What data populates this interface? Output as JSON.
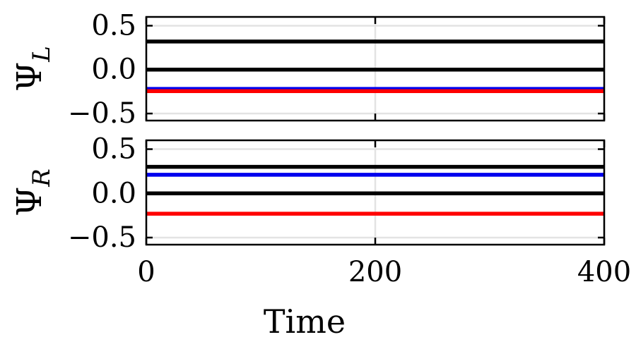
{
  "chart_data": {
    "type": "line",
    "xlabel": "Time",
    "xlim": [
      0,
      400
    ],
    "x_ticks": [
      0,
      200,
      400
    ],
    "x_tick_labels": [
      "0",
      "200",
      "400"
    ],
    "grid": true,
    "panels": [
      {
        "ylabel_symbol": "Ψ",
        "ylabel_sub": "L",
        "ylim": [
          -0.58,
          0.6
        ],
        "y_ticks": [
          0.5,
          0.0,
          -0.5
        ],
        "y_tick_labels": [
          "0.5",
          "0.0",
          "−0.5"
        ],
        "series": [
          {
            "name": "black-upper",
            "color": "#000000",
            "x": [
              0,
              400
            ],
            "y": [
              0.32,
              0.32
            ]
          },
          {
            "name": "black-zero",
            "color": "#000000",
            "x": [
              0,
              400
            ],
            "y": [
              0.0,
              0.0
            ]
          },
          {
            "name": "blue",
            "color": "#0000ee",
            "x": [
              0,
              400
            ],
            "y": [
              -0.22,
              -0.22
            ]
          },
          {
            "name": "red",
            "color": "#ff0000",
            "x": [
              0,
              400
            ],
            "y": [
              -0.245,
              -0.245
            ]
          }
        ]
      },
      {
        "ylabel_symbol": "Ψ",
        "ylabel_sub": "R",
        "ylim": [
          -0.58,
          0.6
        ],
        "y_ticks": [
          0.5,
          0.0,
          -0.5
        ],
        "y_tick_labels": [
          "0.5",
          "0.0",
          "−0.5"
        ],
        "series": [
          {
            "name": "black-upper",
            "color": "#000000",
            "x": [
              0,
              400
            ],
            "y": [
              0.3,
              0.3
            ]
          },
          {
            "name": "blue",
            "color": "#0000ee",
            "x": [
              0,
              400
            ],
            "y": [
              0.21,
              0.21
            ]
          },
          {
            "name": "black-zero",
            "color": "#000000",
            "x": [
              0,
              400
            ],
            "y": [
              0.0,
              0.0
            ]
          },
          {
            "name": "red",
            "color": "#ff0000",
            "x": [
              0,
              400
            ],
            "y": [
              -0.23,
              -0.23
            ]
          }
        ]
      }
    ]
  }
}
